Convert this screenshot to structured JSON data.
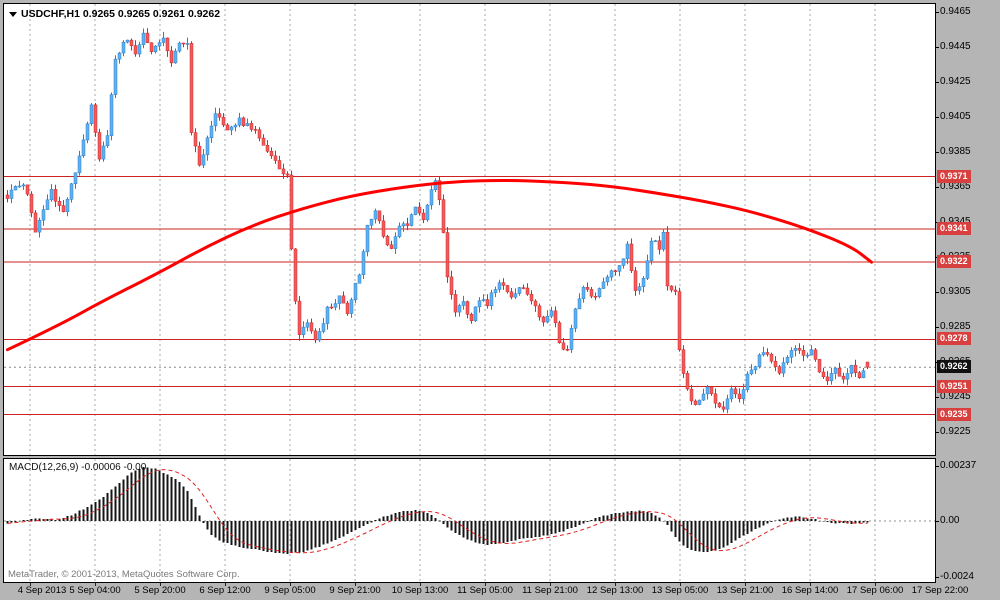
{
  "header": {
    "symbol": "USDCHF",
    "timeframe": "H1",
    "title_text": "USDCHF,H1 0.9265 0.9265 0.9261 0.9262"
  },
  "footer": {
    "watermark": "MetaTrader, © 2001-2013, MetaQuotes Software Corp."
  },
  "colors": {
    "background": "#b5b5b5",
    "plot_bg": "#ffffff",
    "grid": "#a8a8a8",
    "up_candle": "#5fb0f0",
    "up_candle_border": "#2d7fc8",
    "down_candle": "#f15b5b",
    "down_candle_border": "#cc2a2a",
    "ma_line": "#ff0000",
    "hline": "#cc2222",
    "hline_label_bg": "#d84040",
    "current_price_label_bg": "#111111",
    "current_price_dotted": "#8a8a8a",
    "macd_bar": "#151515",
    "macd_signal": "#dd2222",
    "axis_text": "#000000",
    "watermark_text": "#7a7a7a"
  },
  "chart_data": [
    {
      "type": "candlestick",
      "symbol": "USDCHF",
      "timeframe": "H1",
      "last_bar_ohlc": {
        "open": 0.9265,
        "high": 0.9265,
        "low": 0.9261,
        "close": 0.9262
      },
      "current_price": 0.9262,
      "candle_count": 216,
      "ylim": [
        0.9212,
        0.9467
      ],
      "y_ticks": [
        0.9465,
        0.9445,
        0.9425,
        0.9405,
        0.9385,
        0.9365,
        0.9345,
        0.9325,
        0.9305,
        0.9285,
        0.9265,
        0.9245,
        0.9225
      ],
      "x_labels": [
        "4 Sep 2013",
        "5 Sep 04:00",
        "5 Sep 20:00",
        "6 Sep 12:00",
        "9 Sep 05:00",
        "9 Sep 21:00",
        "10 Sep 13:00",
        "11 Sep 05:00",
        "11 Sep 21:00",
        "12 Sep 13:00",
        "13 Sep 05:00",
        "13 Sep 21:00",
        "16 Sep 14:00",
        "17 Sep 06:00",
        "17 Sep 22:00"
      ],
      "horizontal_levels": [
        0.9371,
        0.9341,
        0.9322,
        0.9278,
        0.9251,
        0.9235
      ],
      "close_path": [
        [
          0,
          0.936
        ],
        [
          4,
          0.9368
        ],
        [
          7,
          0.9341
        ],
        [
          11,
          0.9362
        ],
        [
          14,
          0.9352
        ],
        [
          17,
          0.9372
        ],
        [
          20,
          0.94
        ],
        [
          21,
          0.9412
        ],
        [
          23,
          0.9382
        ],
        [
          25,
          0.9396
        ],
        [
          27,
          0.9438
        ],
        [
          30,
          0.945
        ],
        [
          32,
          0.9441
        ],
        [
          34,
          0.9453
        ],
        [
          36,
          0.9444
        ],
        [
          39,
          0.9452
        ],
        [
          41,
          0.9437
        ],
        [
          43,
          0.9447
        ],
        [
          45,
          0.9446
        ],
        [
          46,
          0.9398
        ],
        [
          48,
          0.9376
        ],
        [
          50,
          0.9394
        ],
        [
          52,
          0.9406
        ],
        [
          55,
          0.9397
        ],
        [
          58,
          0.9403
        ],
        [
          62,
          0.9397
        ],
        [
          65,
          0.9384
        ],
        [
          68,
          0.9377
        ],
        [
          70,
          0.9371
        ],
        [
          71,
          0.9328
        ],
        [
          72,
          0.93
        ],
        [
          73,
          0.9281
        ],
        [
          75,
          0.9288
        ],
        [
          77,
          0.9276
        ],
        [
          80,
          0.9295
        ],
        [
          83,
          0.9303
        ],
        [
          85,
          0.9294
        ],
        [
          88,
          0.9316
        ],
        [
          90,
          0.9344
        ],
        [
          92,
          0.9352
        ],
        [
          94,
          0.9337
        ],
        [
          96,
          0.9329
        ],
        [
          98,
          0.9344
        ],
        [
          100,
          0.9341
        ],
        [
          102,
          0.9354
        ],
        [
          104,
          0.9347
        ],
        [
          106,
          0.9362
        ],
        [
          107,
          0.9367
        ],
        [
          108,
          0.9358
        ],
        [
          109,
          0.9338
        ],
        [
          110,
          0.9312
        ],
        [
          112,
          0.9295
        ],
        [
          114,
          0.9301
        ],
        [
          116,
          0.9287
        ],
        [
          118,
          0.9302
        ],
        [
          120,
          0.9299
        ],
        [
          123,
          0.931
        ],
        [
          126,
          0.9301
        ],
        [
          129,
          0.9308
        ],
        [
          132,
          0.9297
        ],
        [
          134,
          0.9287
        ],
        [
          136,
          0.9294
        ],
        [
          138,
          0.9277
        ],
        [
          140,
          0.9271
        ],
        [
          142,
          0.9297
        ],
        [
          144,
          0.9308
        ],
        [
          147,
          0.9301
        ],
        [
          150,
          0.9314
        ],
        [
          153,
          0.932
        ],
        [
          155,
          0.9331
        ],
        [
          157,
          0.9307
        ],
        [
          159,
          0.9313
        ],
        [
          161,
          0.9336
        ],
        [
          163,
          0.933
        ],
        [
          164,
          0.9338
        ],
        [
          165,
          0.931
        ],
        [
          166,
          0.9305
        ],
        [
          167,
          0.9307
        ],
        [
          168,
          0.9272
        ],
        [
          170,
          0.9248
        ],
        [
          172,
          0.9239
        ],
        [
          175,
          0.9251
        ],
        [
          177,
          0.9242
        ],
        [
          179,
          0.9237
        ],
        [
          181,
          0.9249
        ],
        [
          183,
          0.9245
        ],
        [
          185,
          0.9257
        ],
        [
          187,
          0.9264
        ],
        [
          189,
          0.9271
        ],
        [
          191,
          0.9267
        ],
        [
          193,
          0.9259
        ],
        [
          195,
          0.9269
        ],
        [
          197,
          0.9274
        ],
        [
          199,
          0.9267
        ],
        [
          201,
          0.9271
        ],
        [
          203,
          0.9261
        ],
        [
          205,
          0.9254
        ],
        [
          207,
          0.9261
        ],
        [
          209,
          0.9255
        ],
        [
          211,
          0.9263
        ],
        [
          213,
          0.9257
        ],
        [
          216,
          0.9262
        ]
      ],
      "ma_line_points": [
        [
          0,
          0.9272
        ],
        [
          12,
          0.9285
        ],
        [
          24,
          0.93
        ],
        [
          37,
          0.9315
        ],
        [
          49,
          0.933
        ],
        [
          61,
          0.9343
        ],
        [
          74,
          0.9353
        ],
        [
          86,
          0.936
        ],
        [
          99,
          0.9365
        ],
        [
          111,
          0.9368
        ],
        [
          124,
          0.9369
        ],
        [
          136,
          0.9368
        ],
        [
          149,
          0.9366
        ],
        [
          161,
          0.9362
        ],
        [
          174,
          0.9357
        ],
        [
          186,
          0.9351
        ],
        [
          199,
          0.9342
        ],
        [
          211,
          0.9331
        ],
        [
          216,
          0.9322
        ]
      ]
    },
    {
      "type": "bar",
      "name": "MACD(12,26,9)",
      "label_text": "MACD(12,26,9) -0.00006 -0.00",
      "last_value": -6e-05,
      "y_ticks": [
        "0.00237",
        "0.00",
        "-0.0024"
      ],
      "y_tick_values": [
        0.00237,
        0,
        -0.0024
      ],
      "macd_path": [
        [
          0,
          -0.00012
        ],
        [
          4,
          6e-05
        ],
        [
          8,
          0.0001
        ],
        [
          12,
          4e-05
        ],
        [
          16,
          0.00025
        ],
        [
          20,
          0.0006
        ],
        [
          24,
          0.00105
        ],
        [
          28,
          0.00165
        ],
        [
          31,
          0.00212
        ],
        [
          34,
          0.00232
        ],
        [
          37,
          0.00224
        ],
        [
          40,
          0.00198
        ],
        [
          43,
          0.0017
        ],
        [
          45,
          0.0013
        ],
        [
          47,
          0.0006
        ],
        [
          49,
          -0.0001
        ],
        [
          51,
          -0.0006
        ],
        [
          53,
          -0.00085
        ],
        [
          56,
          -0.00102
        ],
        [
          59,
          -0.00115
        ],
        [
          63,
          -0.00126
        ],
        [
          67,
          -0.00136
        ],
        [
          70,
          -0.0014
        ],
        [
          74,
          -0.00134
        ],
        [
          78,
          -0.0011
        ],
        [
          82,
          -0.0008
        ],
        [
          86,
          -0.00048
        ],
        [
          90,
          -0.00014
        ],
        [
          93,
          0.00012
        ],
        [
          96,
          0.0003
        ],
        [
          99,
          0.00042
        ],
        [
          102,
          0.00046
        ],
        [
          105,
          0.00036
        ],
        [
          107,
          0.00014
        ],
        [
          109,
          -0.00012
        ],
        [
          111,
          -0.0004
        ],
        [
          114,
          -0.00072
        ],
        [
          117,
          -0.00092
        ],
        [
          120,
          -0.00102
        ],
        [
          123,
          -0.00096
        ],
        [
          126,
          -0.00086
        ],
        [
          129,
          -0.00076
        ],
        [
          132,
          -0.0007
        ],
        [
          135,
          -0.0006
        ],
        [
          138,
          -0.0005
        ],
        [
          141,
          -0.0003
        ],
        [
          144,
          -0.0001
        ],
        [
          147,
          0.00012
        ],
        [
          150,
          0.00026
        ],
        [
          153,
          0.00036
        ],
        [
          156,
          0.00042
        ],
        [
          159,
          0.00044
        ],
        [
          161,
          0.00034
        ],
        [
          163,
          0.00016
        ],
        [
          165,
          -0.0002
        ],
        [
          167,
          -0.0007
        ],
        [
          169,
          -0.00105
        ],
        [
          171,
          -0.00125
        ],
        [
          174,
          -0.00136
        ],
        [
          177,
          -0.00128
        ],
        [
          180,
          -0.00105
        ],
        [
          183,
          -0.00075
        ],
        [
          186,
          -0.00045
        ],
        [
          189,
          -0.00018
        ],
        [
          192,
          4e-05
        ],
        [
          195,
          0.00016
        ],
        [
          198,
          0.0002
        ],
        [
          201,
          0.0001
        ],
        [
          204,
          -2e-05
        ],
        [
          207,
          -0.0001
        ],
        [
          210,
          -0.00012
        ],
        [
          213,
          -9e-05
        ],
        [
          216,
          -6e-05
        ]
      ]
    }
  ]
}
